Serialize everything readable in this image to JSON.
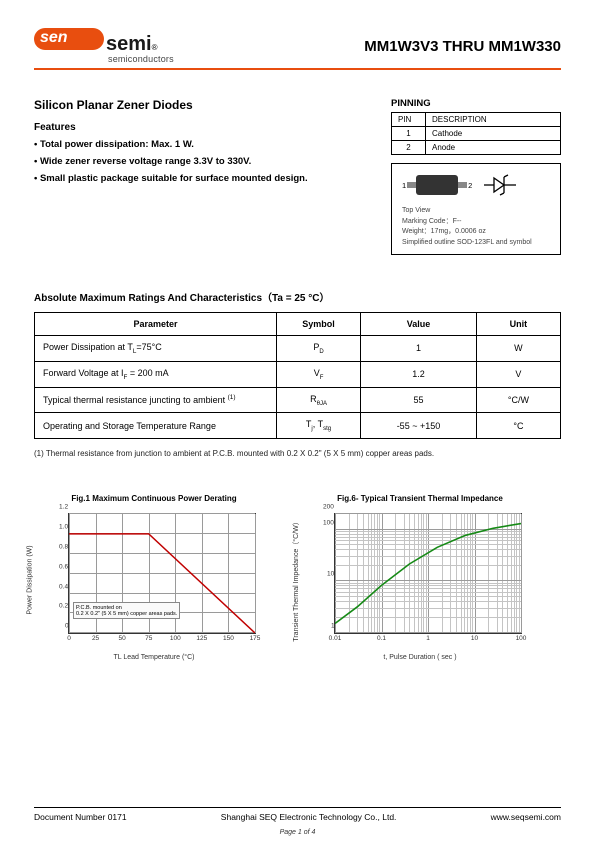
{
  "header": {
    "logo_main": "sen",
    "logo_suffix": "semi",
    "logo_reg": "®",
    "logo_sub": "semiconductors",
    "part_title": "MM1W3V3 THRU MM1W330"
  },
  "title": "Silicon Planar Zener Diodes",
  "features_heading": "Features",
  "features": [
    "• Total power dissipation: Max. 1 W.",
    "• Wide zener reverse voltage range 3.3V to 330V.",
    "• Small plastic package suitable for surface mounted design."
  ],
  "pinning": {
    "heading": "PINNING",
    "col_pin": "PIN",
    "col_desc": "DESCRIPTION",
    "rows": [
      {
        "pin": "1",
        "desc": "Cathode"
      },
      {
        "pin": "2",
        "desc": "Anode"
      }
    ]
  },
  "package": {
    "pin1": "1",
    "pin2": "2",
    "top_view": "Top View",
    "marking": "Marking Code：F--",
    "weight": "Weight：17mg，0.0006 oz",
    "outline": "Simplified outline SOD-123FL and symbol"
  },
  "ratings": {
    "title": "Absolute Maximum Ratings And Characteristics（Ta = 25 °C）",
    "headers": {
      "param": "Parameter",
      "symbol": "Symbol",
      "value": "Value",
      "unit": "Unit"
    },
    "rows": [
      {
        "param": "Power Dissipation at T",
        "param_sub": "L",
        "param_tail": "=75°C",
        "symbol": "P",
        "symbol_sub": "D",
        "value": "1",
        "unit": "W"
      },
      {
        "param": "Forward Voltage at I",
        "param_sub": "F",
        "param_tail": " = 200 mA",
        "symbol": "V",
        "symbol_sub": "F",
        "value": "1.2",
        "unit": "V"
      },
      {
        "param": "Typical thermal resistance juncting to ambient ",
        "param_sub": "",
        "param_tail": "",
        "sup": "(1)",
        "symbol": "R",
        "symbol_sub": "θJA",
        "value": "55",
        "unit": "°C/W"
      },
      {
        "param": "Operating and Storage Temperature Range",
        "param_sub": "",
        "param_tail": "",
        "symbol": "T",
        "symbol_sub": "j",
        "symbol2": ", T",
        "symbol2_sub": "stg",
        "value": "-55 ~ +150",
        "unit": "°C"
      }
    ],
    "footnote": "(1)  Thermal resistance from junction to ambient at P.C.B. mounted with 0.2 X 0.2\" (5 X 5 mm) copper areas pads."
  },
  "chart1": {
    "title": "Fig.1  Maximum Continuous Power Derating",
    "type": "line",
    "ylabel": "Power Dissipation (W)",
    "xlabel": "TL Lead Temperature (°C)",
    "xlim": [
      0,
      175
    ],
    "ylim": [
      0,
      1.2
    ],
    "xticks": [
      "0",
      "25",
      "50",
      "75",
      "100",
      "125",
      "150",
      "175"
    ],
    "yticks": [
      "0",
      "0.2",
      "0.4",
      "0.6",
      "0.8",
      "1.0",
      "1.2"
    ],
    "grid_color": "#9a9a9a",
    "line_color": "#c00000",
    "note_line1": "P.C.B. mounted on",
    "note_line2": "0.2 X 0.2\" (5 X 5 mm) copper areas pads.",
    "points": [
      [
        0,
        1.0
      ],
      [
        25,
        1.0
      ],
      [
        75,
        1.0
      ],
      [
        175,
        0.0
      ]
    ]
  },
  "chart2": {
    "title": "Fig.6- Typical Transient Thermal Impedance",
    "type": "line-loglog",
    "ylabel": "Transient Thermal Impedance（°C/W）",
    "xlabel": "t, Pulse Duration ( sec )",
    "xticks": [
      "0.01",
      "0.1",
      "1",
      "10",
      "100"
    ],
    "yticks": [
      "1",
      "10",
      "100",
      "200"
    ],
    "grid_color": "#9a9a9a",
    "line_color": "#168a16",
    "points_pct": [
      [
        0,
        8
      ],
      [
        12,
        22
      ],
      [
        25,
        40
      ],
      [
        40,
        58
      ],
      [
        55,
        72
      ],
      [
        70,
        82
      ],
      [
        85,
        88
      ],
      [
        100,
        92
      ]
    ]
  },
  "footer": {
    "docnum": "Document Number 0171",
    "company": "Shanghai SEQ Electronic Technology Co., Ltd.",
    "url": "www.seqsemi.com",
    "page": "Page 1 of 4"
  }
}
